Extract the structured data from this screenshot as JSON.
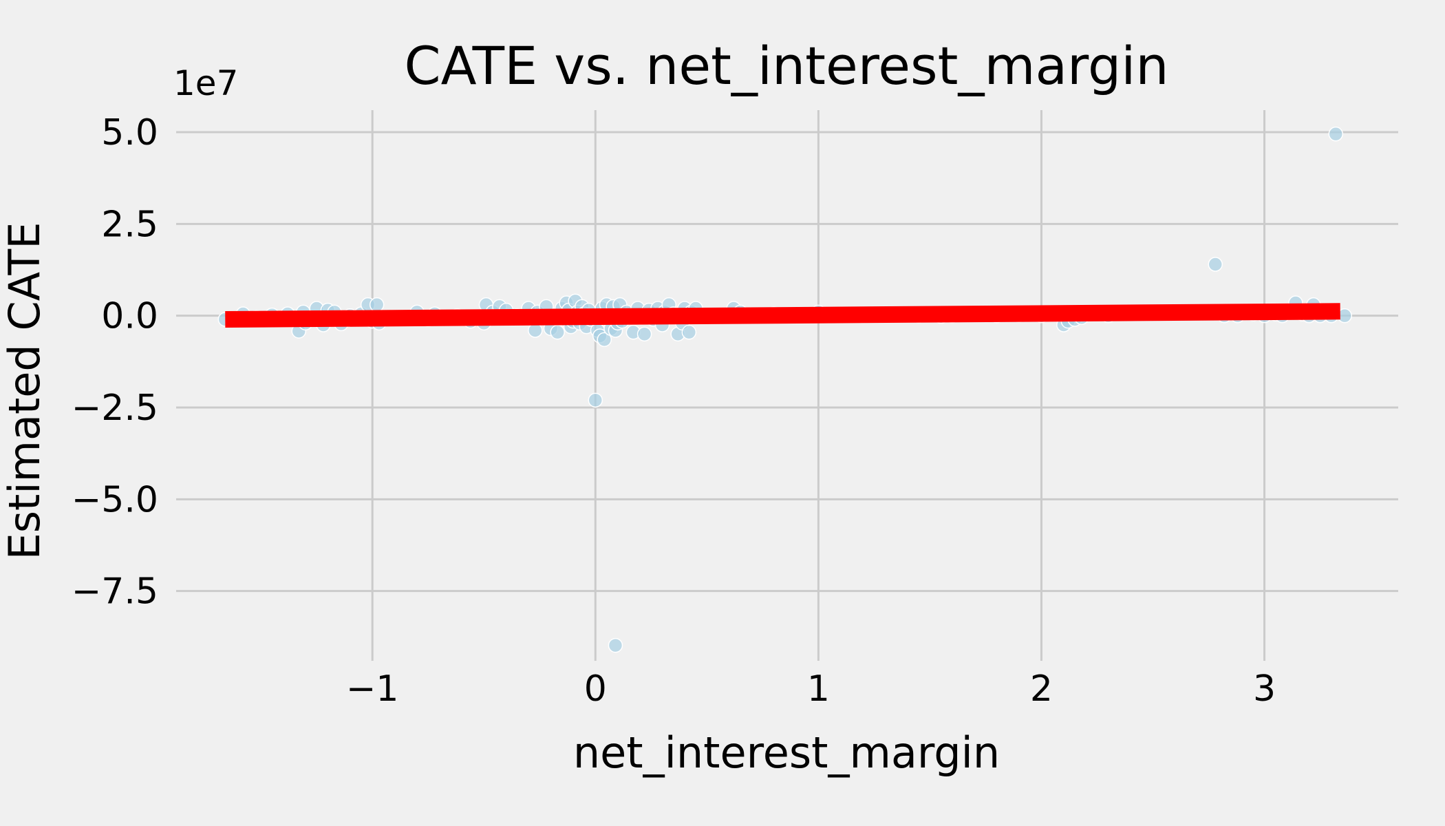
{
  "chart_data": {
    "type": "scatter",
    "title": "CATE vs. net_interest_margin",
    "xlabel": "net_interest_margin",
    "ylabel": "Estimated CATE",
    "y_offset_label": "1e7",
    "xlim": [
      -1.88,
      3.6
    ],
    "ylim": [
      -9.4,
      5.6
    ],
    "x_ticks": [
      -1,
      0,
      1,
      2,
      3
    ],
    "x_tick_labels": [
      "−1",
      "0",
      "1",
      "2",
      "3"
    ],
    "y_ticks": [
      5.0,
      2.5,
      0.0,
      -2.5,
      -5.0,
      -7.5
    ],
    "y_tick_labels": [
      "5.0",
      "2.5",
      "0.0",
      "−2.5",
      "−5.0",
      "−7.5"
    ],
    "grid": true,
    "colors": {
      "points": "#a6cee3",
      "trend": "#ff0000",
      "background": "#f0f0f0",
      "grid": "#cbcbcb"
    },
    "trend_line": {
      "x": [
        -1.66,
        3.34
      ],
      "y": [
        -0.1,
        0.12
      ]
    },
    "points": {
      "x": [
        -1.66,
        -1.58,
        -1.52,
        -1.45,
        -1.38,
        -1.33,
        -1.31,
        -1.3,
        -1.25,
        -1.22,
        -1.2,
        -1.17,
        -1.14,
        -1.1,
        -1.05,
        -1.02,
        -1.0,
        -0.98,
        -0.97,
        -0.85,
        -0.8,
        -0.75,
        -0.72,
        -0.62,
        -0.56,
        -0.5,
        -0.49,
        -0.46,
        -0.43,
        -0.4,
        -0.35,
        -0.3,
        -0.27,
        -0.26,
        -0.22,
        -0.2,
        -0.17,
        -0.15,
        -0.14,
        -0.13,
        -0.12,
        -0.11,
        -0.1,
        -0.09,
        -0.08,
        -0.07,
        -0.06,
        -0.05,
        -0.04,
        -0.03,
        -0.02,
        0.0,
        0.01,
        0.02,
        0.03,
        0.04,
        0.05,
        0.06,
        0.07,
        0.08,
        0.09,
        0.1,
        0.11,
        0.12,
        0.14,
        0.17,
        0.19,
        0.2,
        0.22,
        0.24,
        0.26,
        0.28,
        0.3,
        0.31,
        0.33,
        0.35,
        0.37,
        0.39,
        0.4,
        0.42,
        0.43,
        0.45,
        0.62,
        0.65,
        0.7,
        0.8,
        0.9,
        1.0,
        1.2,
        1.4,
        1.45,
        1.55,
        1.6,
        1.75,
        1.8,
        1.9,
        2.0,
        2.05,
        2.1,
        2.12,
        2.15,
        2.18,
        2.3,
        2.78,
        2.82,
        2.88,
        2.95,
        3.0,
        3.05,
        3.08,
        3.12,
        3.14,
        3.17,
        3.2,
        3.22,
        3.25,
        3.28,
        3.3,
        3.32,
        3.36
      ],
      "y": [
        -0.1,
        0.05,
        -0.05,
        0.02,
        0.05,
        -0.42,
        0.1,
        -0.2,
        0.2,
        -0.25,
        0.15,
        0.1,
        -0.22,
        0.0,
        0.05,
        0.3,
        -0.15,
        0.3,
        -0.2,
        -0.05,
        0.1,
        -0.1,
        0.05,
        0.0,
        -0.15,
        -0.2,
        0.3,
        0.1,
        0.25,
        0.15,
        0.0,
        0.2,
        -0.4,
        0.1,
        0.25,
        -0.35,
        -0.45,
        0.2,
        -0.1,
        0.35,
        0.15,
        -0.3,
        -0.15,
        0.4,
        0.1,
        -0.2,
        0.25,
        0.05,
        -0.3,
        0.15,
        -0.1,
        -2.3,
        -0.4,
        -0.55,
        0.2,
        -0.65,
        0.3,
        -0.05,
        -0.35,
        0.25,
        -0.4,
        -0.2,
        0.3,
        -0.15,
        0.1,
        -0.45,
        0.2,
        -0.05,
        -0.5,
        0.15,
        -0.1,
        0.2,
        -0.25,
        0.1,
        0.3,
        0.05,
        -0.5,
        -0.2,
        0.2,
        -0.45,
        0.1,
        0.2,
        0.2,
        0.1,
        0.0,
        0.05,
        0.0,
        0.1,
        0.0,
        0.05,
        0.0,
        -0.02,
        0.0,
        0.03,
        0.0,
        0.02,
        0.0,
        0.05,
        -0.25,
        -0.15,
        -0.1,
        -0.05,
        0.0,
        1.4,
        0.0,
        0.0,
        0.05,
        0.0,
        0.05,
        0.0,
        0.1,
        0.35,
        0.05,
        0.0,
        0.3,
        0.0,
        0.1,
        0.0,
        4.95,
        0.0
      ]
    },
    "outliers": {
      "x": [
        0.09
      ],
      "y": [
        -8.98
      ]
    }
  }
}
